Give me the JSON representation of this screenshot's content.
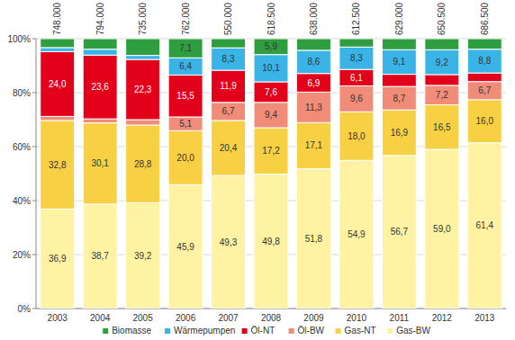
{
  "chart_data": {
    "type": "bar",
    "stacked": true,
    "data_labels": true,
    "grid": true,
    "legend": "bottom",
    "categories": [
      "2003",
      "2004",
      "2005",
      "2006",
      "2007",
      "2008",
      "2009",
      "2010",
      "2011",
      "2012",
      "2013"
    ],
    "totals": [
      748000,
      794000,
      735000,
      762000,
      550000,
      618500,
      638000,
      612500,
      629000,
      650500,
      686500
    ],
    "total_labels": [
      "748.000",
      "794.000",
      "735.000",
      "762.000",
      "550.000",
      "618.500",
      "638.000",
      "612.500",
      "629.000",
      "650.500",
      "686.500"
    ],
    "ylim": [
      0,
      100
    ],
    "yticks": [
      {
        "value": 0,
        "label": "0%"
      },
      {
        "value": 20,
        "label": "20%"
      },
      {
        "value": 40,
        "label": "40%"
      },
      {
        "value": 60,
        "label": "60%"
      },
      {
        "value": 80,
        "label": "80%"
      },
      {
        "value": 100,
        "label": "100%"
      }
    ],
    "series": [
      {
        "name": "Gas-BW",
        "color": "#fff3a3",
        "values": [
          36.9,
          38.7,
          39.2,
          45.9,
          49.3,
          49.8,
          51.8,
          54.9,
          56.7,
          59.0,
          61.4
        ],
        "value_labels": [
          "36,9",
          "38,7",
          "39,2",
          "45,9",
          "49,3",
          "49,8",
          "51,8",
          "54,9",
          "56,7",
          "59,0",
          "61,4"
        ]
      },
      {
        "name": "Gas-NT",
        "color": "#f8d044",
        "values": [
          32.8,
          30.1,
          28.8,
          20.0,
          20.4,
          17.2,
          17.1,
          18.0,
          16.9,
          16.5,
          16.0
        ],
        "value_labels": [
          "32,8",
          "30,1",
          "28,8",
          "20,0",
          "20,4",
          "17,2",
          "17,1",
          "18,0",
          "16,9",
          "16,5",
          "16,0"
        ]
      },
      {
        "name": "Öl-BW",
        "color": "#f08c78",
        "values": [
          1.5,
          1.5,
          2.0,
          5.1,
          6.7,
          9.4,
          11.3,
          9.6,
          8.7,
          7.2,
          6.7
        ],
        "value_labels": [
          null,
          null,
          null,
          "5,1",
          "6,7",
          "9,4",
          "11,3",
          "9,6",
          "8,7",
          "7,2",
          "6,7"
        ]
      },
      {
        "name": "Öl-NT",
        "color": "#e3001b",
        "values": [
          24.0,
          23.6,
          22.3,
          15.5,
          11.9,
          7.6,
          6.9,
          6.1,
          4.5,
          4.0,
          3.2
        ],
        "value_labels": [
          "24,0",
          "23,6",
          "22,3",
          "15,5",
          "11,9",
          "7,6",
          "6,9",
          "6,1",
          null,
          null,
          null
        ]
      },
      {
        "name": "Wärmepumpen",
        "color": "#3ab4e6",
        "values": [
          1.5,
          2.2,
          1.5,
          6.4,
          8.3,
          10.1,
          8.6,
          8.3,
          9.1,
          9.2,
          8.8
        ],
        "value_labels": [
          null,
          null,
          null,
          "6,4",
          "8,3",
          "10,1",
          "8,6",
          "8,3",
          "9,1",
          "9,2",
          "8,8"
        ]
      },
      {
        "name": "Biomasse",
        "color": "#2f9e41",
        "values": [
          3.3,
          3.9,
          6.2,
          7.1,
          3.4,
          5.9,
          4.3,
          3.1,
          4.1,
          4.1,
          3.9
        ],
        "value_labels": [
          null,
          null,
          null,
          "7,1",
          null,
          "5,9",
          null,
          null,
          null,
          null,
          null
        ]
      }
    ]
  }
}
